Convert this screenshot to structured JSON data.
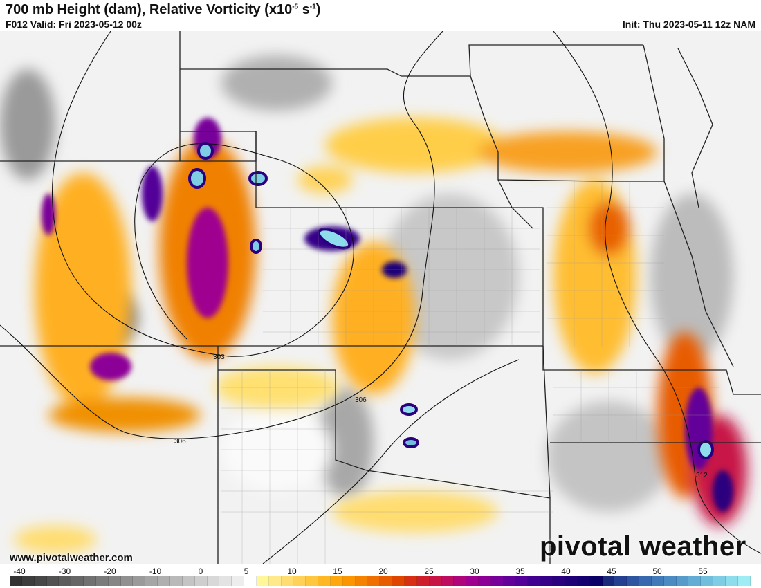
{
  "header": {
    "title": "700 mb Height (dam), Relative Vorticity (x10",
    "title_exp1": "-5",
    "title_unit": " s",
    "title_exp2": "-1",
    "title_close": ")",
    "valid": "F012 Valid: Fri 2023-05-12 00z",
    "init": "Init: Thu 2023-05-11 12z NAM"
  },
  "map": {
    "height_contour_labels": [
      "303",
      "306",
      "306",
      "312"
    ],
    "website": "www.pivotalweather.com",
    "logo": "pivotal weather"
  },
  "colorbar": {
    "tick_labels": [
      "-40",
      "-30",
      "-20",
      "-10",
      "0",
      "5",
      "10",
      "15",
      "20",
      "25",
      "30",
      "35",
      "40",
      "45",
      "50",
      "55"
    ],
    "colors": {
      "negative": [
        "#333333",
        "#3d3d3d",
        "#474747",
        "#525252",
        "#5c5c5c",
        "#666666",
        "#717171",
        "#7b7b7b",
        "#868686",
        "#909090",
        "#9a9a9a",
        "#a5a5a5",
        "#afafaf",
        "#b9b9b9",
        "#c4c4c4",
        "#cecece",
        "#d8d8d8",
        "#e3e3e3",
        "#ededed",
        "#ffffff"
      ],
      "positive": [
        "#fff799",
        "#ffe98a",
        "#ffdd70",
        "#ffd257",
        "#ffc63f",
        "#ffb824",
        "#ffa70d",
        "#fb9600",
        "#f58300",
        "#ef7000",
        "#e85c00",
        "#e04500",
        "#d82e14",
        "#d01f2c",
        "#c71546",
        "#be0c60",
        "#b0047a",
        "#a0008f",
        "#8c0098",
        "#78009a",
        "#64009a",
        "#520098",
        "#420090",
        "#350087",
        "#2a007f",
        "#1f0077",
        "#140070",
        "#0a0068",
        "#1a2a7a",
        "#254090",
        "#2e55a0",
        "#3868ae",
        "#4279b8",
        "#4c8ac2",
        "#579bcb",
        "#63acd4",
        "#70bddc",
        "#7fcde5",
        "#8edded",
        "#9eedf5"
      ]
    }
  }
}
